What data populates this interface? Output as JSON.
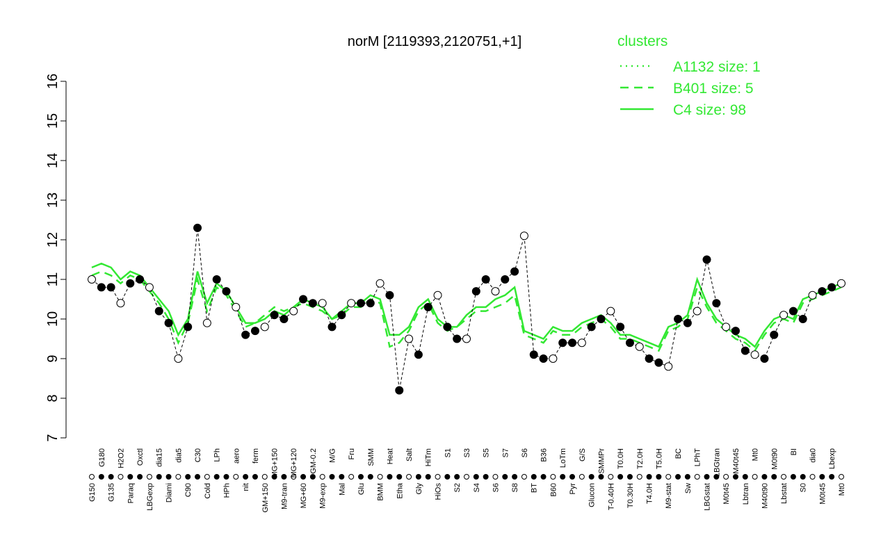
{
  "chart_data": {
    "type": "line",
    "title": "norM [2119393,2120751,+1]",
    "legend_title": "clusters",
    "categories": [
      "G150",
      "G180",
      "G135",
      "H2O2",
      "Paraq",
      "Oxctl",
      "LBGexp",
      "dia15",
      "Diami",
      "dia5",
      "C90",
      "C30",
      "Cold",
      "LPh",
      "HPh",
      "aero",
      "nit",
      "ferm",
      "GM+150",
      "MG+150",
      "M9-tran",
      "MG+120",
      "MG+60",
      "GM-0.2",
      "M9-exp",
      "M/G",
      "Mal",
      "Fru",
      "Glu",
      "SMM",
      "BMM",
      "Heat",
      "Etha",
      "Salt",
      "Gly",
      "HiTm",
      "HiOs",
      "S1",
      "S2",
      "S3",
      "S4",
      "S5",
      "S6",
      "S7",
      "S8",
      "S6",
      "BT",
      "B36",
      "B60",
      "LoTm",
      "Pyr",
      "G/S",
      "Glucon",
      "SMMPr",
      "T-0.40H",
      "T0.0H",
      "T0.30H",
      "T2.0H",
      "T4.0H",
      "T5.0H",
      "M9-stat",
      "BC",
      "Sw",
      "LPhT",
      "LBGstat",
      "LBGtran",
      "M0t45",
      "M40t45",
      "Lbtran",
      "Mt0",
      "M40t90",
      "M0t90",
      "Lbstat",
      "BI",
      "S0",
      "dia0",
      "M0t45",
      "Lbexp",
      "Mt0"
    ],
    "series": [
      {
        "name": "A1132 size: 1",
        "color": "#33e833",
        "dash": "dotted",
        "markers": true,
        "values": [
          11.0,
          10.8,
          10.8,
          10.4,
          10.9,
          11.0,
          10.8,
          10.2,
          9.9,
          9.0,
          9.8,
          12.3,
          9.9,
          11.0,
          10.7,
          10.3,
          9.6,
          9.7,
          9.8,
          10.1,
          10.0,
          10.2,
          10.5,
          10.4,
          10.4,
          9.8,
          10.1,
          10.4,
          10.4,
          10.4,
          10.9,
          10.6,
          8.2,
          9.5,
          9.1,
          10.3,
          10.6,
          9.8,
          9.5,
          9.5,
          10.7,
          11.0,
          10.7,
          11.0,
          11.2,
          12.1,
          9.1,
          9.0,
          9.0,
          9.4,
          9.4,
          9.4,
          9.8,
          10.0,
          10.2,
          9.8,
          9.4,
          9.3,
          9.0,
          8.9,
          8.8,
          10.0,
          9.9,
          10.2,
          11.5,
          10.4,
          9.8,
          9.7,
          9.2,
          9.1,
          9.0,
          9.6,
          10.1,
          10.2,
          10.0,
          10.6,
          10.7,
          10.8,
          10.9
        ]
      },
      {
        "name": "B401 size: 5",
        "color": "#33e833",
        "dash": "dashed",
        "values": [
          11.1,
          11.2,
          11.1,
          10.9,
          11.1,
          11.0,
          10.7,
          10.4,
          10.0,
          9.4,
          9.9,
          11.0,
          10.2,
          10.8,
          10.6,
          10.2,
          9.8,
          9.9,
          10.1,
          10.3,
          10.2,
          10.3,
          10.4,
          10.3,
          10.2,
          10.0,
          10.1,
          10.3,
          10.3,
          10.5,
          10.4,
          9.3,
          9.4,
          9.7,
          10.2,
          10.4,
          9.9,
          9.7,
          9.8,
          10.0,
          10.2,
          10.2,
          10.3,
          10.4,
          10.6,
          9.6,
          9.5,
          9.4,
          9.7,
          9.6,
          9.6,
          9.8,
          9.9,
          10.0,
          9.8,
          9.5,
          9.5,
          9.4,
          9.3,
          9.2,
          9.7,
          9.8,
          10.0,
          10.8,
          10.3,
          9.9,
          9.7,
          9.5,
          9.4,
          9.2,
          9.6,
          9.9,
          10.0,
          9.9,
          10.4,
          10.5,
          10.6,
          10.7,
          10.8
        ]
      },
      {
        "name": "C4 size: 98",
        "color": "#33e833",
        "dash": "solid",
        "values": [
          11.3,
          11.4,
          11.3,
          11.0,
          11.2,
          11.1,
          10.8,
          10.5,
          10.2,
          9.6,
          10.0,
          11.2,
          10.4,
          10.9,
          10.7,
          10.3,
          9.9,
          9.9,
          10.0,
          10.2,
          10.1,
          10.3,
          10.5,
          10.4,
          10.3,
          10.0,
          10.2,
          10.4,
          10.4,
          10.6,
          10.5,
          9.6,
          9.6,
          9.8,
          10.3,
          10.5,
          10.0,
          9.8,
          9.8,
          10.1,
          10.3,
          10.3,
          10.5,
          10.6,
          10.8,
          9.7,
          9.6,
          9.5,
          9.8,
          9.7,
          9.7,
          9.9,
          10.0,
          10.1,
          9.9,
          9.6,
          9.6,
          9.5,
          9.4,
          9.3,
          9.8,
          9.9,
          10.1,
          11.0,
          10.4,
          10.0,
          9.8,
          9.6,
          9.5,
          9.3,
          9.7,
          10.0,
          10.1,
          10.0,
          10.5,
          10.6,
          10.7,
          10.8,
          10.9
        ]
      }
    ],
    "ylim": [
      7,
      16
    ],
    "yticks": [
      7,
      8,
      9,
      10,
      11,
      12,
      13,
      14,
      15,
      16
    ]
  }
}
